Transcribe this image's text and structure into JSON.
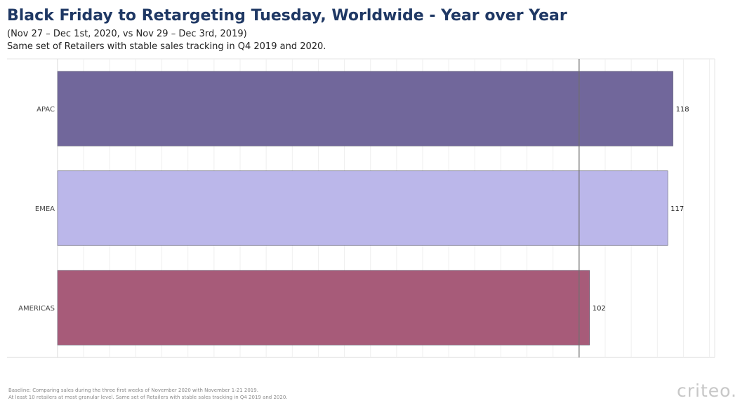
{
  "header": {
    "title": "Black Friday to Retargeting Tuesday, Worldwide - Year over Year",
    "subtitle": "(Nov 27 – Dec 1st, 2020, vs Nov 29 – Dec 3rd, 2019)",
    "subtitle2": "Same set of Retailers with stable sales tracking in Q4 2019 and 2020."
  },
  "chart_data": {
    "type": "bar",
    "orientation": "horizontal",
    "categories": [
      "APAC",
      "EMEA",
      "AMERICAS"
    ],
    "values": [
      118,
      117,
      102
    ],
    "colors": [
      "#71679b",
      "#bbb7ea",
      "#a75b79"
    ],
    "data_labels": [
      "118",
      "117",
      "102"
    ],
    "reference_line": 100,
    "xlim": [
      0,
      126
    ],
    "grid": true
  },
  "footer": {
    "note1": "Baseline: Comparing sales during the three first weeks of November 2020 with November 1-21 2019.",
    "note2": "At least 10 retailers at most granular level. Same set of Retailers with stable sales tracking in Q4 2019 and 2020.",
    "logo": "criteo."
  }
}
